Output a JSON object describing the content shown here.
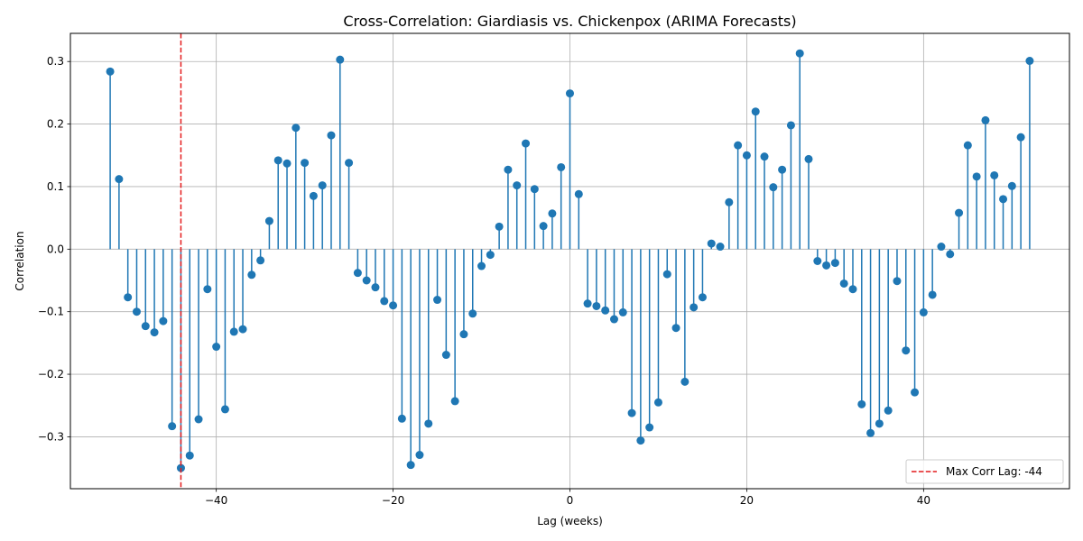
{
  "chart_data": {
    "type": "stem",
    "title": "Cross-Correlation: Giardiasis vs. Chickenpox (ARIMA Forecasts)",
    "xlabel": "Lag (weeks)",
    "ylabel": "Correlation",
    "xlim": [
      -56.5,
      56.5
    ],
    "ylim": [
      -0.383,
      0.345
    ],
    "xticks": [
      -40,
      -20,
      0,
      20,
      40
    ],
    "yticks": [
      -0.3,
      -0.2,
      -0.1,
      0.0,
      0.1,
      0.2,
      0.3
    ],
    "xtick_labels": [
      "−40",
      "−20",
      "0",
      "20",
      "40"
    ],
    "ytick_labels": [
      "−0.3",
      "−0.2",
      "−0.1",
      "0.0",
      "0.1",
      "0.2",
      "0.3"
    ],
    "grid": true,
    "series_color": "#1f77b4",
    "x": [
      -52,
      -51,
      -50,
      -49,
      -48,
      -47,
      -46,
      -45,
      -44,
      -43,
      -42,
      -41,
      -40,
      -39,
      -38,
      -37,
      -36,
      -35,
      -34,
      -33,
      -32,
      -31,
      -30,
      -29,
      -28,
      -27,
      -26,
      -25,
      -24,
      -23,
      -22,
      -21,
      -20,
      -19,
      -18,
      -17,
      -16,
      -15,
      -14,
      -13,
      -12,
      -11,
      -10,
      -9,
      -8,
      -7,
      -6,
      -5,
      -4,
      -3,
      -2,
      -1,
      0,
      1,
      2,
      3,
      4,
      5,
      6,
      7,
      8,
      9,
      10,
      11,
      12,
      13,
      14,
      15,
      16,
      17,
      18,
      19,
      20,
      21,
      22,
      23,
      24,
      25,
      26,
      27,
      28,
      29,
      30,
      31,
      32,
      33,
      34,
      35,
      36,
      37,
      38,
      39,
      40,
      41,
      42,
      43,
      44,
      45,
      46,
      47,
      48,
      49,
      50,
      51,
      52
    ],
    "values": [
      0.284,
      0.112,
      -0.077,
      -0.1,
      -0.123,
      -0.133,
      -0.115,
      -0.283,
      -0.35,
      -0.33,
      -0.272,
      -0.064,
      -0.156,
      -0.256,
      -0.132,
      -0.128,
      -0.041,
      -0.018,
      0.045,
      0.142,
      0.137,
      0.194,
      0.138,
      0.085,
      0.102,
      0.182,
      0.303,
      0.138,
      -0.038,
      -0.05,
      -0.061,
      -0.083,
      -0.09,
      -0.271,
      -0.345,
      -0.329,
      -0.279,
      -0.081,
      -0.169,
      -0.243,
      -0.136,
      -0.103,
      -0.027,
      -0.009,
      0.036,
      0.127,
      0.102,
      0.169,
      0.096,
      0.037,
      0.057,
      0.131,
      0.249,
      0.088,
      -0.087,
      -0.091,
      -0.098,
      -0.112,
      -0.101,
      -0.262,
      -0.306,
      -0.285,
      -0.245,
      -0.04,
      -0.126,
      -0.212,
      -0.093,
      -0.077,
      0.009,
      0.004,
      0.075,
      0.166,
      0.15,
      0.22,
      0.148,
      0.099,
      0.127,
      0.198,
      0.313,
      0.144,
      -0.019,
      -0.026,
      -0.022,
      -0.055,
      -0.064,
      -0.248,
      -0.294,
      -0.279,
      -0.258,
      -0.051,
      -0.162,
      -0.229,
      -0.101,
      -0.073,
      0.004,
      -0.008,
      0.058,
      0.166,
      0.116,
      0.206,
      0.118,
      0.08,
      0.101,
      0.179,
      0.301
    ],
    "max_corr_lag": -44,
    "max_line_color": "#e41a1c",
    "legend": {
      "label": "Max Corr Lag: -44",
      "placement": "lower-right"
    }
  }
}
